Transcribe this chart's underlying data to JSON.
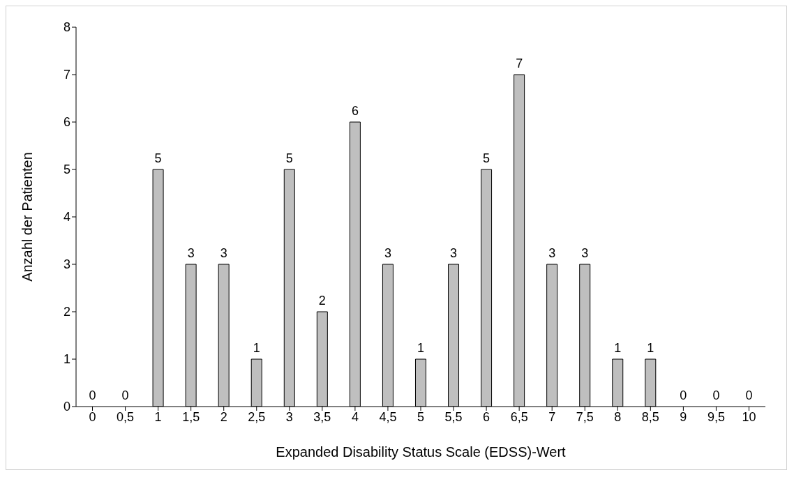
{
  "chart_data": {
    "type": "bar",
    "xlabel": "Expanded Disability Status Scale (EDSS)-Wert",
    "ylabel": "Anzahl der Patienten",
    "categories": [
      "0",
      "0,5",
      "1",
      "1,5",
      "2",
      "2,5",
      "3",
      "3,5",
      "4",
      "4,5",
      "5",
      "5,5",
      "6",
      "6,5",
      "7",
      "7,5",
      "8",
      "8,5",
      "9",
      "9,5",
      "10"
    ],
    "values": [
      0,
      0,
      5,
      3,
      3,
      1,
      5,
      2,
      6,
      3,
      1,
      3,
      5,
      7,
      3,
      3,
      1,
      1,
      0,
      0,
      0
    ],
    "color": "#bfbfbf",
    "ylim": [
      0,
      8
    ],
    "yticks": [
      0,
      1,
      2,
      3,
      4,
      5,
      6,
      7,
      8
    ],
    "grid": false,
    "data_labels": true
  }
}
